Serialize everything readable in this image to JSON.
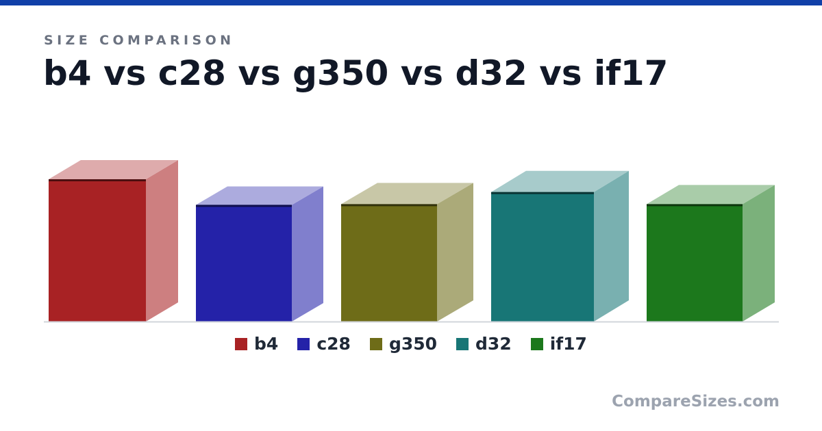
{
  "eyebrow": "SIZE COMPARISON",
  "title": "b4 vs c28 vs g350 vs d32 vs if17",
  "watermark": "CompareSizes.com",
  "colors": {
    "top_bar": "#1040a8",
    "baseline": "#d1d5db"
  },
  "chart_data": {
    "type": "bar",
    "categories": [
      "b4",
      "c28",
      "g350",
      "d32",
      "if17"
    ],
    "values": [
      100,
      82,
      82.5,
      91,
      82.5
    ],
    "colors": [
      "#a82224",
      "#2422a8",
      "#6e6c18",
      "#187676",
      "#1c781c"
    ],
    "ylim": [
      0,
      100
    ],
    "grid": false,
    "legend": "bottom"
  }
}
